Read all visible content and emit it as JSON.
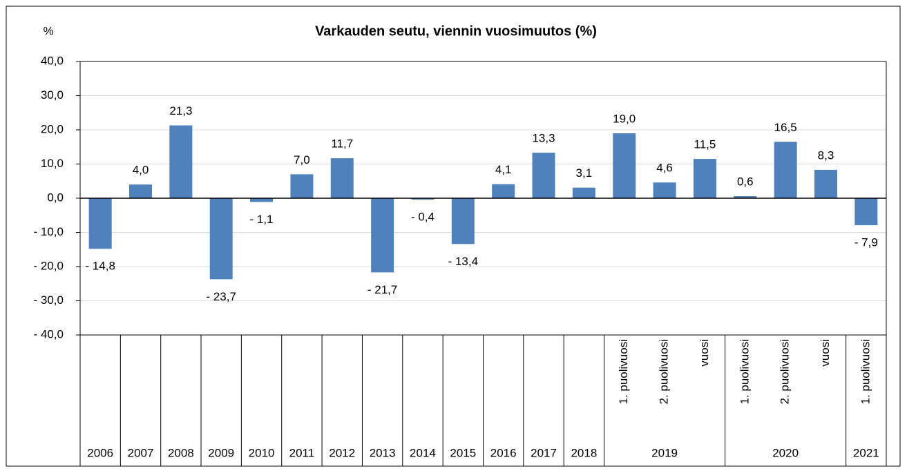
{
  "chart_data": {
    "type": "bar",
    "title": "Varkauden seutu, viennin vuosimuutos (%)",
    "y_axis_label": "%",
    "groups": [
      {
        "label": "2006",
        "categories": [
          null
        ]
      },
      {
        "label": "2007",
        "categories": [
          null
        ]
      },
      {
        "label": "2008",
        "categories": [
          null
        ]
      },
      {
        "label": "2009",
        "categories": [
          null
        ]
      },
      {
        "label": "2010",
        "categories": [
          null
        ]
      },
      {
        "label": "2011",
        "categories": [
          null
        ]
      },
      {
        "label": "2012",
        "categories": [
          null
        ]
      },
      {
        "label": "2013",
        "categories": [
          null
        ]
      },
      {
        "label": "2014",
        "categories": [
          null
        ]
      },
      {
        "label": "2015",
        "categories": [
          null
        ]
      },
      {
        "label": "2016",
        "categories": [
          null
        ]
      },
      {
        "label": "2017",
        "categories": [
          null
        ]
      },
      {
        "label": "2018",
        "categories": [
          null
        ]
      },
      {
        "label": "2019",
        "categories": [
          "1. puolivuosi",
          "2. puolivuosi",
          "vuosi"
        ]
      },
      {
        "label": "2020",
        "categories": [
          "1. puolivuosi",
          "2. puolivuosi",
          "vuosi"
        ]
      },
      {
        "label": "2021",
        "categories": [
          "1. puolivuosi"
        ]
      }
    ],
    "values": [
      -14.8,
      4.0,
      21.3,
      -23.7,
      -1.1,
      7.0,
      11.7,
      -21.7,
      -0.4,
      -13.4,
      4.1,
      13.3,
      3.1,
      19.0,
      4.6,
      11.5,
      0.6,
      16.5,
      8.3,
      -7.9
    ],
    "value_labels": [
      "- 14,8",
      "4,0",
      "21,3",
      "- 23,7",
      "- 1,1",
      "7,0",
      "11,7",
      "- 21,7",
      "- 0,4",
      "- 13,4",
      "4,1",
      "13,3",
      "3,1",
      "19,0",
      "4,6",
      "11,5",
      "0,6",
      "16,5",
      "8,3",
      "- 7,9"
    ],
    "color": "#4f81bd",
    "ylim": [
      -40,
      40
    ],
    "yticks": [
      {
        "value": -40,
        "label": "- 40,0"
      },
      {
        "value": -30,
        "label": "- 30,0"
      },
      {
        "value": -20,
        "label": "- 20,0"
      },
      {
        "value": -10,
        "label": "- 10,0"
      },
      {
        "value": 0,
        "label": "0,0"
      },
      {
        "value": 10,
        "label": "10,0"
      },
      {
        "value": 20,
        "label": "20,0"
      },
      {
        "value": 30,
        "label": "30,0"
      },
      {
        "value": 40,
        "label": "40,0"
      }
    ],
    "grid": true
  }
}
